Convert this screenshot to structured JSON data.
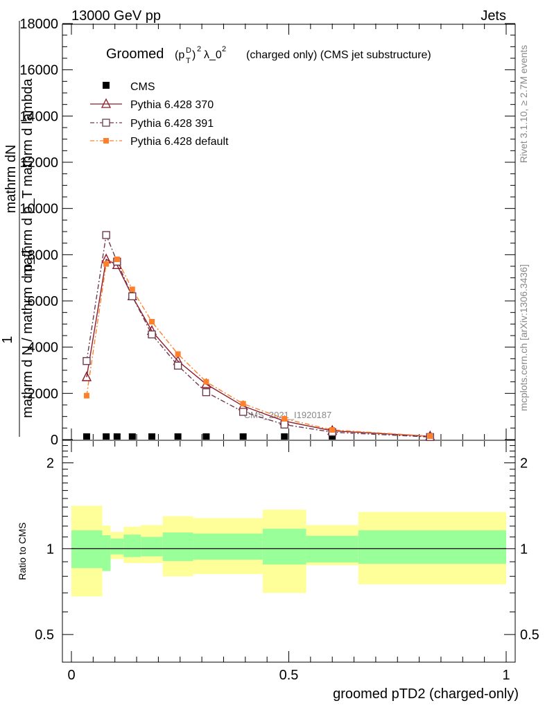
{
  "header": {
    "energy": "13000 GeV pp",
    "process": "Jets"
  },
  "plot": {
    "title_main": "Groomed",
    "title_formula": "(p_T^D)^2 λ_0^2",
    "title_rest": "(charged only) (CMS jet substructure)",
    "y_axis_label_numerator": "mathrm dN",
    "y_axis_label_subscript": "mathrm d p_T mathrm d lambda",
    "y_axis_label_denominator": "mathrm d N / mathrm d p_T",
    "y_axis_label_one": "1",
    "watermark": "CMS_2021_I1920187"
  },
  "side_text": {
    "rivet": "Rivet 3.1.10, ≥ 2.7M events",
    "mcplots": "mcplots.cern.ch [arXiv:1306.3436]"
  },
  "ratio": {
    "ylabel": "Ratio to CMS",
    "ticks": [
      "2",
      "1",
      "0.5"
    ],
    "band_edges": [
      0.0,
      0.071,
      0.09,
      0.12,
      0.16,
      0.21,
      0.28,
      0.44,
      0.54,
      0.66,
      1.0
    ],
    "inner_lo": [
      0.855,
      0.835,
      0.955,
      0.935,
      0.94,
      0.905,
      0.915,
      0.88,
      0.895,
      0.885
    ],
    "inner_hi": [
      1.16,
      1.115,
      1.085,
      1.12,
      1.1,
      1.14,
      1.13,
      1.175,
      1.11,
      1.16
    ],
    "outer_lo": [
      0.68,
      0.835,
      0.92,
      0.89,
      0.89,
      0.8,
      0.815,
      0.7,
      0.875,
      0.75
    ],
    "outer_hi": [
      1.415,
      1.205,
      1.145,
      1.195,
      1.21,
      1.3,
      1.28,
      1.37,
      1.21,
      1.345
    ]
  },
  "legend": [
    {
      "label": "CMS"
    },
    {
      "label": "Pythia 6.428 370"
    },
    {
      "label": "Pythia 6.428 391"
    },
    {
      "label": "Pythia 6.428 default"
    }
  ],
  "colors": {
    "cms": "#000000",
    "p370": "#8b1a2b",
    "p391": "#6e3a4e",
    "pdef": "#ff7f2a",
    "band_inner": "#99ff99",
    "band_outer": "#ffff99"
  },
  "chart_data": {
    "type": "line",
    "title": "Groomed (p_T^D)^2 λ_0^2 (charged only) (CMS jet substructure)",
    "xlabel": "groomed pTD2 (charged-only)",
    "ylabel": "1 / mathrm d N / mathrm d p_T  mathrm dN / mathrm d p_T mathrm d lambda",
    "xlim": [
      0,
      1
    ],
    "ylim": [
      0,
      18000
    ],
    "x_ticks": [
      "0",
      "0.5",
      "1"
    ],
    "y_ticks": [
      "0",
      "2000",
      "4000",
      "6000",
      "8000",
      "10000",
      "12000",
      "14000",
      "16000",
      "18000"
    ],
    "x": [
      0.035,
      0.08,
      0.105,
      0.14,
      0.185,
      0.245,
      0.31,
      0.395,
      0.49,
      0.6,
      0.825
    ],
    "series": [
      {
        "name": "CMS",
        "values": [
          0,
          0,
          0,
          0,
          0,
          0,
          0,
          0,
          0,
          0,
          0
        ]
      },
      {
        "name": "Pythia 6.428 370",
        "values": [
          2700,
          7800,
          7550,
          6200,
          4700,
          3400,
          2400,
          1450,
          800,
          380,
          140
        ]
      },
      {
        "name": "Pythia 6.428 391",
        "values": [
          3400,
          8850,
          7700,
          6200,
          4550,
          3200,
          2050,
          1200,
          650,
          320,
          110
        ]
      },
      {
        "name": "Pythia 6.428 default",
        "values": [
          1900,
          7600,
          7800,
          6500,
          5100,
          3700,
          2500,
          1550,
          900,
          420,
          150
        ]
      }
    ],
    "ratio_ylabel": "Ratio to CMS",
    "ratio_ylim": [
      0.4,
      2.4
    ]
  }
}
